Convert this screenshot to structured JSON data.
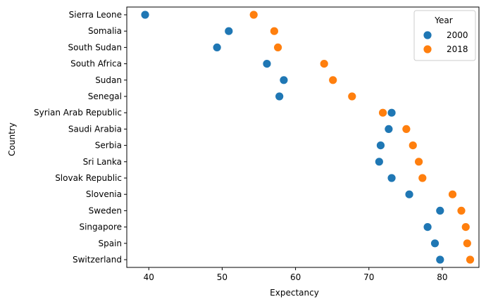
{
  "chart_data": {
    "type": "scatter",
    "xlabel": "Expectancy",
    "ylabel": "Country",
    "xlim": [
      37.0,
      85.0
    ],
    "xticks": [
      40,
      50,
      60,
      70,
      80
    ],
    "grid": false,
    "categories": [
      "Sierra Leone",
      "Somalia",
      "South Sudan",
      "South Africa",
      "Sudan",
      "Senegal",
      "Syrian Arab Republic",
      "Saudi Arabia",
      "Serbia",
      "Sri Lanka",
      "Slovak Republic",
      "Slovenia",
      "Sweden",
      "Singapore",
      "Spain",
      "Switzerland"
    ],
    "legend": {
      "title": "Year",
      "placement": "top-right"
    },
    "series": [
      {
        "name": "2000",
        "color": "#1f77b4",
        "values": [
          39.5,
          50.9,
          49.3,
          56.1,
          58.4,
          57.8,
          73.1,
          72.7,
          71.6,
          71.4,
          73.1,
          75.5,
          79.7,
          78.0,
          79.0,
          79.7
        ]
      },
      {
        "name": "2018",
        "color": "#ff7f0e",
        "values": [
          54.3,
          57.1,
          57.6,
          63.9,
          65.1,
          67.7,
          71.9,
          75.1,
          76.0,
          76.8,
          77.3,
          81.4,
          82.6,
          83.2,
          83.4,
          83.8
        ]
      }
    ]
  }
}
